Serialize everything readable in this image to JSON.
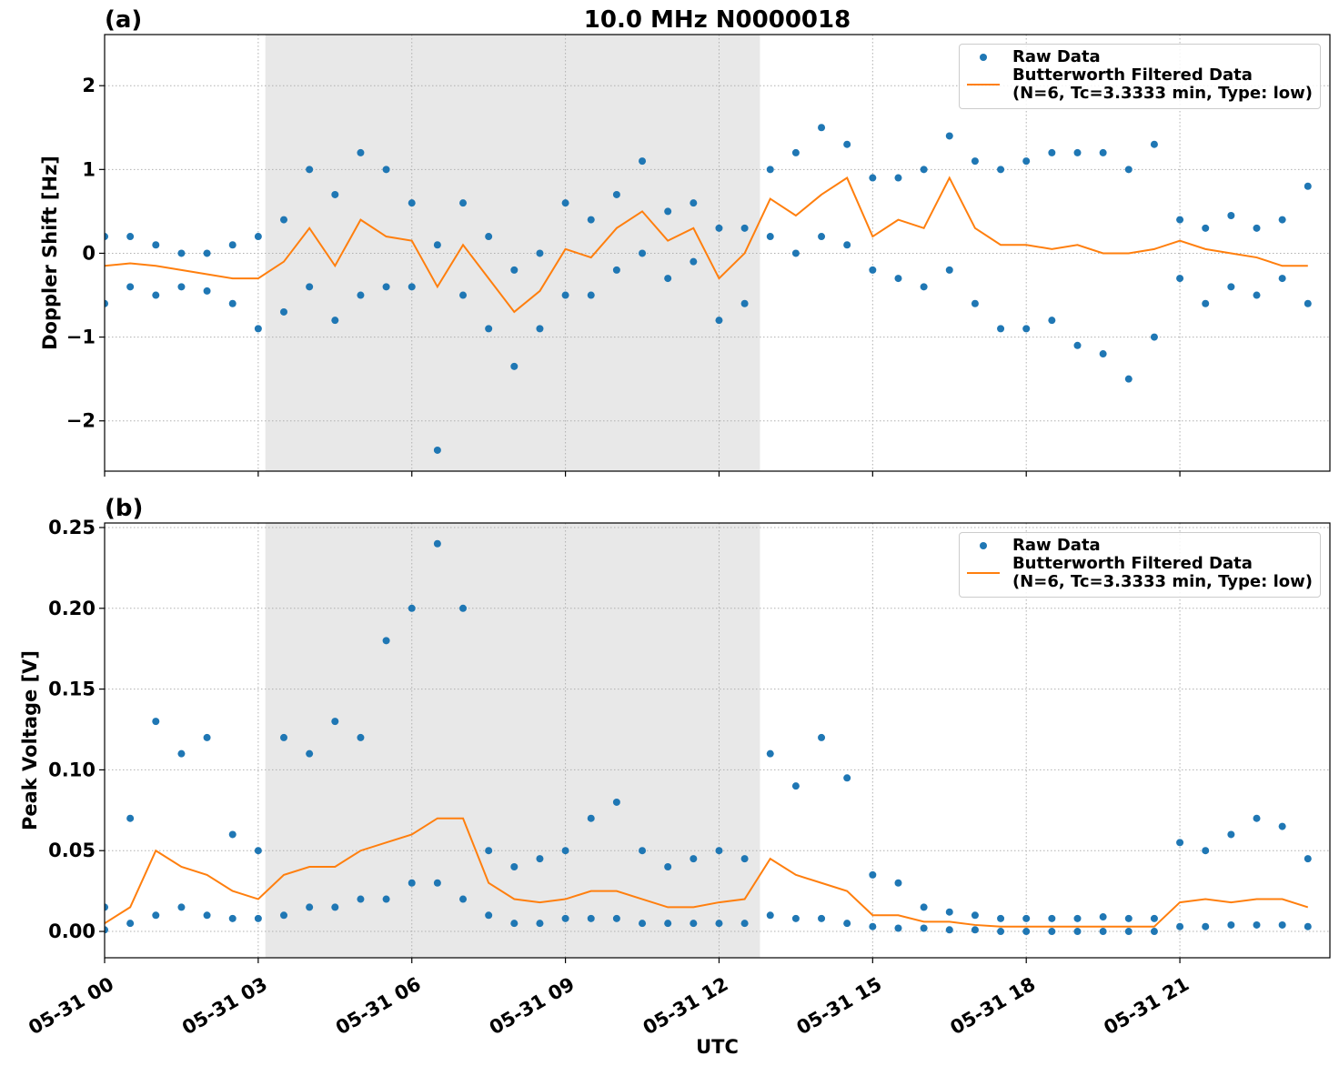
{
  "chart_data": [
    {
      "type": "line",
      "title": "10.0 MHz N0000018",
      "panel_label": "(a)",
      "y_label": "Doppler Shift [Hz]",
      "xlim": [
        0,
        23.93
      ],
      "xticks": [
        0,
        3,
        6,
        9,
        12,
        15,
        18,
        21
      ],
      "ylim": [
        -2.6,
        2.61
      ],
      "yticks": [
        {
          "value": -2,
          "label": "−2"
        },
        {
          "value": -1,
          "label": "−1"
        },
        0,
        1,
        2
      ],
      "grid": true,
      "shade": [
        3.14,
        12.8
      ],
      "legend": "upper right",
      "series": [
        {
          "name": "Raw Data",
          "style": "points",
          "color": "#1f77b4",
          "x": [
            0,
            0,
            0.5,
            0.5,
            1,
            1,
            1.5,
            1.5,
            2,
            2,
            2.5,
            2.5,
            3,
            3,
            3.5,
            3.5,
            4,
            4,
            4.5,
            4.5,
            5,
            5,
            5.5,
            5.5,
            6,
            6,
            6.5,
            6.5,
            7,
            7,
            7.5,
            7.5,
            8,
            8,
            8.5,
            8.5,
            9,
            9,
            9.5,
            9.5,
            10,
            10,
            10.5,
            10.5,
            11,
            11,
            11.5,
            11.5,
            12,
            12,
            12.5,
            12.5,
            13,
            13,
            13.5,
            13.5,
            14,
            14,
            14.5,
            14.5,
            15,
            15,
            15.5,
            15.5,
            16,
            16,
            16.5,
            16.5,
            17,
            17,
            17.5,
            17.5,
            18,
            18,
            18.5,
            18.5,
            19,
            19,
            19.5,
            19.5,
            20,
            20,
            20.5,
            20.5,
            21,
            21,
            21.5,
            21.5,
            22,
            22,
            22.5,
            22.5,
            23,
            23,
            23.5,
            23.5
          ],
          "values": [
            0.2,
            -0.6,
            0.2,
            -0.4,
            0.1,
            -0.5,
            0.0,
            -0.4,
            0.0,
            -0.45,
            0.1,
            -0.6,
            0.2,
            -0.9,
            0.4,
            -0.7,
            1.0,
            -0.4,
            0.7,
            -0.8,
            1.2,
            -0.5,
            1.0,
            -0.4,
            0.6,
            -0.4,
            0.1,
            -2.35,
            0.6,
            -0.5,
            0.2,
            -0.9,
            -0.2,
            -1.35,
            0.0,
            -0.9,
            0.6,
            -0.5,
            0.4,
            -0.5,
            0.7,
            -0.2,
            1.1,
            0.0,
            0.5,
            -0.3,
            0.6,
            -0.1,
            0.3,
            -0.8,
            0.3,
            -0.6,
            1.0,
            0.2,
            1.2,
            0.0,
            1.5,
            0.2,
            1.3,
            0.1,
            0.9,
            -0.2,
            0.9,
            -0.3,
            1.0,
            -0.4,
            1.4,
            -0.2,
            1.1,
            -0.6,
            1.0,
            -0.9,
            1.1,
            -0.9,
            1.2,
            -0.8,
            1.2,
            -1.1,
            1.2,
            -1.2,
            1.0,
            -1.5,
            1.3,
            -1.0,
            0.4,
            -0.3,
            0.3,
            -0.6,
            0.45,
            -0.4,
            0.3,
            -0.5,
            0.4,
            -0.3,
            0.8,
            -0.6
          ]
        },
        {
          "name": "Butterworth Filtered Data\n(N=6, Tc=3.3333 min, Type: low)",
          "style": "line",
          "color": "#ff7f0e",
          "x": [
            0,
            0.5,
            1,
            1.5,
            2,
            2.5,
            3,
            3.5,
            4,
            4.5,
            5,
            5.5,
            6,
            6.5,
            7,
            7.5,
            8,
            8.5,
            9,
            9.5,
            10,
            10.5,
            11,
            11.5,
            12,
            12.5,
            13,
            13.5,
            14,
            14.5,
            15,
            15.5,
            16,
            16.5,
            17,
            17.5,
            18,
            18.5,
            19,
            19.5,
            20,
            20.5,
            21,
            21.5,
            22,
            22.5,
            23,
            23.5
          ],
          "values": [
            -0.15,
            -0.12,
            -0.15,
            -0.2,
            -0.25,
            -0.3,
            -0.3,
            -0.1,
            0.3,
            -0.15,
            0.4,
            0.2,
            0.15,
            -0.4,
            0.1,
            -0.3,
            -0.7,
            -0.45,
            0.05,
            -0.05,
            0.3,
            0.5,
            0.15,
            0.3,
            -0.3,
            0.0,
            0.65,
            0.45,
            0.7,
            0.9,
            0.2,
            0.4,
            0.3,
            0.9,
            0.3,
            0.1,
            0.1,
            0.05,
            0.1,
            0.0,
            0.0,
            0.05,
            0.15,
            0.05,
            0.0,
            -0.05,
            -0.15,
            -0.15
          ]
        }
      ]
    },
    {
      "type": "line",
      "panel_label": "(b)",
      "y_label": "Peak Voltage [V]",
      "x_label": "UTC",
      "xlim": [
        0,
        23.93
      ],
      "xticks": [
        {
          "value": 0,
          "label": "05-31 00"
        },
        {
          "value": 3,
          "label": "05-31 03"
        },
        {
          "value": 6,
          "label": "05-31 06"
        },
        {
          "value": 9,
          "label": "05-31 09"
        },
        {
          "value": 12,
          "label": "05-31 12"
        },
        {
          "value": 15,
          "label": "05-31 15"
        },
        {
          "value": 18,
          "label": "05-31 18"
        },
        {
          "value": 21,
          "label": "05-31 21"
        }
      ],
      "ylim": [
        -0.0163,
        0.2528
      ],
      "yticks": [
        {
          "value": 0,
          "label": "0.00"
        },
        {
          "value": 0.05,
          "label": "0.05"
        },
        {
          "value": 0.1,
          "label": "0.10"
        },
        {
          "value": 0.15,
          "label": "0.15"
        },
        {
          "value": 0.2,
          "label": "0.20"
        },
        {
          "value": 0.25,
          "label": "0.25"
        }
      ],
      "grid": true,
      "shade": [
        3.14,
        12.8
      ],
      "legend": "upper right",
      "series": [
        {
          "name": "Raw Data",
          "style": "points",
          "color": "#1f77b4",
          "x": [
            0,
            0,
            0.5,
            0.5,
            1,
            1,
            1.5,
            1.5,
            2,
            2,
            2.5,
            2.5,
            3,
            3,
            3.5,
            3.5,
            4,
            4,
            4.5,
            4.5,
            5,
            5,
            5.5,
            5.5,
            6,
            6,
            6.5,
            6.5,
            7,
            7,
            7.5,
            7.5,
            8,
            8,
            8.5,
            8.5,
            9,
            9,
            9.5,
            9.5,
            10,
            10,
            10.5,
            10.5,
            11,
            11,
            11.5,
            11.5,
            12,
            12,
            12.5,
            12.5,
            13,
            13,
            13.5,
            13.5,
            14,
            14,
            14.5,
            14.5,
            15,
            15,
            15.5,
            15.5,
            16,
            16,
            16.5,
            16.5,
            17,
            17,
            17.5,
            17.5,
            18,
            18,
            18.5,
            18.5,
            19,
            19,
            19.5,
            19.5,
            20,
            20,
            20.5,
            20.5,
            21,
            21,
            21.5,
            21.5,
            22,
            22,
            22.5,
            22.5,
            23,
            23,
            23.5,
            23.5
          ],
          "values": [
            0.015,
            0.001,
            0.07,
            0.005,
            0.13,
            0.01,
            0.11,
            0.015,
            0.12,
            0.01,
            0.06,
            0.008,
            0.05,
            0.008,
            0.12,
            0.01,
            0.11,
            0.015,
            0.13,
            0.015,
            0.12,
            0.02,
            0.18,
            0.02,
            0.2,
            0.03,
            0.24,
            0.03,
            0.2,
            0.02,
            0.05,
            0.01,
            0.04,
            0.005,
            0.045,
            0.005,
            0.05,
            0.008,
            0.07,
            0.008,
            0.08,
            0.008,
            0.05,
            0.005,
            0.04,
            0.005,
            0.045,
            0.005,
            0.05,
            0.005,
            0.045,
            0.005,
            0.11,
            0.01,
            0.09,
            0.008,
            0.12,
            0.008,
            0.095,
            0.005,
            0.035,
            0.003,
            0.03,
            0.002,
            0.015,
            0.002,
            0.012,
            0.001,
            0.01,
            0.001,
            0.008,
            0.0,
            0.008,
            0.0,
            0.008,
            0.0,
            0.008,
            0.0,
            0.009,
            0.0,
            0.008,
            0.0,
            0.008,
            0.0,
            0.055,
            0.003,
            0.05,
            0.003,
            0.06,
            0.004,
            0.07,
            0.004,
            0.065,
            0.004,
            0.045,
            0.003
          ]
        },
        {
          "name": "Butterworth Filtered Data\n(N=6, Tc=3.3333 min, Type: low)",
          "style": "line",
          "color": "#ff7f0e",
          "x": [
            0,
            0.5,
            1,
            1.5,
            2,
            2.5,
            3,
            3.5,
            4,
            4.5,
            5,
            5.5,
            6,
            6.5,
            7,
            7.5,
            8,
            8.5,
            9,
            9.5,
            10,
            10.5,
            11,
            11.5,
            12,
            12.5,
            13,
            13.5,
            14,
            14.5,
            15,
            15.5,
            16,
            16.5,
            17,
            17.5,
            18,
            18.5,
            19,
            19.5,
            20,
            20.5,
            21,
            21.5,
            22,
            22.5,
            23,
            23.5
          ],
          "values": [
            0.005,
            0.015,
            0.05,
            0.04,
            0.035,
            0.025,
            0.02,
            0.035,
            0.04,
            0.04,
            0.05,
            0.055,
            0.06,
            0.07,
            0.07,
            0.03,
            0.02,
            0.018,
            0.02,
            0.025,
            0.025,
            0.02,
            0.015,
            0.015,
            0.018,
            0.02,
            0.045,
            0.035,
            0.03,
            0.025,
            0.01,
            0.01,
            0.006,
            0.006,
            0.004,
            0.003,
            0.003,
            0.003,
            0.003,
            0.003,
            0.003,
            0.003,
            0.018,
            0.02,
            0.018,
            0.02,
            0.02,
            0.015
          ]
        }
      ]
    }
  ]
}
